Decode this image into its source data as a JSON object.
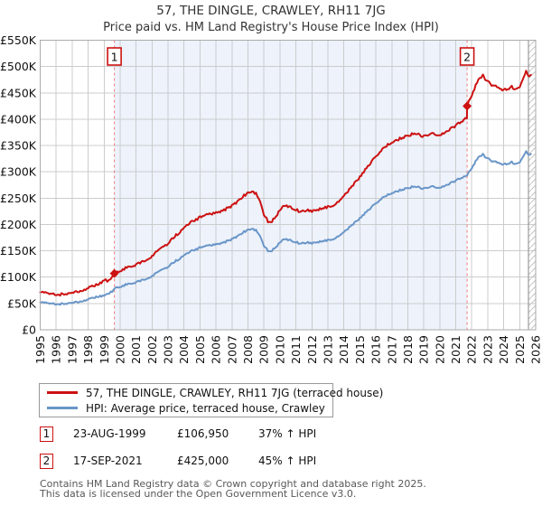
{
  "page": {
    "title_line1": "57, THE DINGLE, CRAWLEY, RH11 7JG",
    "title_line2": "Price paid vs. HM Land Registry's House Price Index (HPI)"
  },
  "chart_data": {
    "type": "line",
    "title": "57, THE DINGLE, CRAWLEY, RH11 7JG",
    "subtitle": "Price paid vs. HM Land Registry's House Price Index (HPI)",
    "grid": true,
    "legend_position": "bottom",
    "x_axis": {
      "min": 1995,
      "max": 2026,
      "tick_step": 1,
      "labels": [
        "1995",
        "1996",
        "1997",
        "1998",
        "1999",
        "2000",
        "2001",
        "2002",
        "2003",
        "2004",
        "2005",
        "2006",
        "2007",
        "2008",
        "2009",
        "2010",
        "2011",
        "2012",
        "2013",
        "2014",
        "2015",
        "2016",
        "2017",
        "2018",
        "2019",
        "2020",
        "2021",
        "2022",
        "2023",
        "2024",
        "2025",
        "2026"
      ]
    },
    "y_axis": {
      "min": 0,
      "max": 550000,
      "tick_step": 50000,
      "labels": [
        "£0",
        "£50K",
        "£100K",
        "£150K",
        "£200K",
        "£250K",
        "£300K",
        "£350K",
        "£400K",
        "£450K",
        "£500K",
        "£550K"
      ]
    },
    "shaded_span": {
      "from": 1999.64,
      "to": 2021.71,
      "color": "#edf2fb"
    },
    "hatch_span": {
      "from": 2025.55,
      "to": 2026
    },
    "sale_events": [
      {
        "label": "1",
        "x": 1999.64,
        "price": 106950
      },
      {
        "label": "2",
        "x": 2021.71,
        "price": 425000
      }
    ],
    "series": [
      {
        "name": "57, THE DINGLE, CRAWLEY, RH11 7JG (terraced house)",
        "color": "#cc1111",
        "noise": 2400,
        "points": [
          [
            1995.0,
            71200
          ],
          [
            1995.25,
            69900
          ],
          [
            1995.5,
            69200
          ],
          [
            1995.75,
            68500
          ],
          [
            1996.0,
            67800
          ],
          [
            1996.25,
            67100
          ],
          [
            1996.5,
            67800
          ],
          [
            1996.75,
            68500
          ],
          [
            1997.0,
            69900
          ],
          [
            1997.25,
            71200
          ],
          [
            1997.5,
            74000
          ],
          [
            1997.75,
            76700
          ],
          [
            1998.0,
            79500
          ],
          [
            1998.25,
            82200
          ],
          [
            1998.5,
            84900
          ],
          [
            1998.75,
            88000
          ],
          [
            1999.0,
            95000
          ],
          [
            1999.2,
            93500
          ],
          [
            1999.4,
            96500
          ],
          [
            1999.64,
            106950
          ],
          [
            1999.75,
            109600
          ],
          [
            2000.0,
            112300
          ],
          [
            2000.25,
            115800
          ],
          [
            2000.5,
            119200
          ],
          [
            2000.75,
            121900
          ],
          [
            2001.0,
            123300
          ],
          [
            2001.25,
            127400
          ],
          [
            2001.5,
            131500
          ],
          [
            2001.75,
            135600
          ],
          [
            2002.0,
            139700
          ],
          [
            2002.25,
            146600
          ],
          [
            2002.5,
            152100
          ],
          [
            2002.75,
            158900
          ],
          [
            2003.0,
            164400
          ],
          [
            2003.25,
            172600
          ],
          [
            2003.5,
            179500
          ],
          [
            2003.75,
            186300
          ],
          [
            2004.0,
            191800
          ],
          [
            2004.25,
            200000
          ],
          [
            2004.5,
            205500
          ],
          [
            2004.75,
            209600
          ],
          [
            2005.0,
            213700
          ],
          [
            2005.25,
            216500
          ],
          [
            2005.5,
            219200
          ],
          [
            2005.75,
            220600
          ],
          [
            2006.0,
            221900
          ],
          [
            2006.25,
            224700
          ],
          [
            2006.5,
            227400
          ],
          [
            2006.75,
            231500
          ],
          [
            2007.0,
            235600
          ],
          [
            2007.25,
            241100
          ],
          [
            2007.5,
            248000
          ],
          [
            2007.75,
            254800
          ],
          [
            2008.0,
            260300
          ],
          [
            2008.25,
            263000
          ],
          [
            2008.5,
            258900
          ],
          [
            2008.75,
            243900
          ],
          [
            2009.0,
            219200
          ],
          [
            2009.25,
            205500
          ],
          [
            2009.42,
            202800
          ],
          [
            2009.5,
            206900
          ],
          [
            2009.75,
            215100
          ],
          [
            2010.0,
            227400
          ],
          [
            2010.25,
            235600
          ],
          [
            2010.5,
            234300
          ],
          [
            2010.75,
            231500
          ],
          [
            2011.0,
            228800
          ],
          [
            2011.25,
            223300
          ],
          [
            2011.5,
            226100
          ],
          [
            2011.75,
            227400
          ],
          [
            2012.0,
            224700
          ],
          [
            2012.25,
            227400
          ],
          [
            2012.5,
            230200
          ],
          [
            2012.75,
            231500
          ],
          [
            2013.0,
            232900
          ],
          [
            2013.25,
            235600
          ],
          [
            2013.5,
            239800
          ],
          [
            2013.75,
            245200
          ],
          [
            2014.0,
            253500
          ],
          [
            2014.25,
            263000
          ],
          [
            2014.5,
            272600
          ],
          [
            2014.75,
            280900
          ],
          [
            2015.0,
            290400
          ],
          [
            2015.25,
            300000
          ],
          [
            2015.5,
            309600
          ],
          [
            2015.75,
            319200
          ],
          [
            2016.0,
            330200
          ],
          [
            2016.25,
            338400
          ],
          [
            2016.5,
            345200
          ],
          [
            2016.75,
            350700
          ],
          [
            2017.0,
            354800
          ],
          [
            2017.25,
            359000
          ],
          [
            2017.5,
            363100
          ],
          [
            2017.75,
            365800
          ],
          [
            2018.0,
            368500
          ],
          [
            2018.25,
            371300
          ],
          [
            2018.5,
            372600
          ],
          [
            2018.75,
            369900
          ],
          [
            2019.0,
            367200
          ],
          [
            2019.25,
            369900
          ],
          [
            2019.5,
            372600
          ],
          [
            2019.75,
            371300
          ],
          [
            2020.0,
            369900
          ],
          [
            2020.25,
            372600
          ],
          [
            2020.5,
            378100
          ],
          [
            2020.75,
            383600
          ],
          [
            2021.0,
            387700
          ],
          [
            2021.25,
            393200
          ],
          [
            2021.5,
            398700
          ],
          [
            2021.7,
            401400
          ],
          [
            2021.71,
            425000
          ],
          [
            2021.75,
            429200
          ],
          [
            2022.0,
            443700
          ],
          [
            2022.25,
            464000
          ],
          [
            2022.5,
            478500
          ],
          [
            2022.7,
            482900
          ],
          [
            2022.75,
            480000
          ],
          [
            2023.0,
            471300
          ],
          [
            2023.25,
            465500
          ],
          [
            2023.5,
            462600
          ],
          [
            2023.75,
            458200
          ],
          [
            2024.0,
            455300
          ],
          [
            2024.25,
            458200
          ],
          [
            2024.5,
            461100
          ],
          [
            2024.75,
            456800
          ],
          [
            2025.0,
            462600
          ],
          [
            2025.25,
            480000
          ],
          [
            2025.4,
            490100
          ],
          [
            2025.55,
            480000
          ],
          [
            2025.7,
            484300
          ]
        ]
      },
      {
        "name": "HPI: Average price, terraced house, Crawley",
        "color": "#6a96c8",
        "noise": 1700,
        "points": [
          [
            1995.0,
            52000
          ],
          [
            1995.25,
            51000
          ],
          [
            1995.5,
            50500
          ],
          [
            1995.75,
            50000
          ],
          [
            1996.0,
            49500
          ],
          [
            1996.25,
            49000
          ],
          [
            1996.5,
            49500
          ],
          [
            1996.75,
            50000
          ],
          [
            1997.0,
            51000
          ],
          [
            1997.25,
            52000
          ],
          [
            1997.5,
            54000
          ],
          [
            1997.75,
            56000
          ],
          [
            1998.0,
            58000
          ],
          [
            1998.25,
            60000
          ],
          [
            1998.5,
            62000
          ],
          [
            1998.75,
            63500
          ],
          [
            1999.0,
            65500
          ],
          [
            1999.25,
            68500
          ],
          [
            1999.5,
            72500
          ],
          [
            1999.64,
            78000
          ],
          [
            1999.75,
            80000
          ],
          [
            2000.0,
            82000
          ],
          [
            2000.25,
            84500
          ],
          [
            2000.5,
            87000
          ],
          [
            2000.75,
            89000
          ],
          [
            2001.0,
            90000
          ],
          [
            2001.25,
            93000
          ],
          [
            2001.5,
            96000
          ],
          [
            2001.75,
            99000
          ],
          [
            2002.0,
            102000
          ],
          [
            2002.25,
            107000
          ],
          [
            2002.5,
            111000
          ],
          [
            2002.75,
            116000
          ],
          [
            2003.0,
            120000
          ],
          [
            2003.25,
            126000
          ],
          [
            2003.5,
            131000
          ],
          [
            2003.75,
            136000
          ],
          [
            2004.0,
            140000
          ],
          [
            2004.25,
            146000
          ],
          [
            2004.5,
            150000
          ],
          [
            2004.75,
            153000
          ],
          [
            2005.0,
            156000
          ],
          [
            2005.25,
            158000
          ],
          [
            2005.5,
            160000
          ],
          [
            2005.75,
            161000
          ],
          [
            2006.0,
            162000
          ],
          [
            2006.25,
            164000
          ],
          [
            2006.5,
            166000
          ],
          [
            2006.75,
            169000
          ],
          [
            2007.0,
            172000
          ],
          [
            2007.25,
            176000
          ],
          [
            2007.5,
            181000
          ],
          [
            2007.75,
            186000
          ],
          [
            2008.0,
            190000
          ],
          [
            2008.25,
            192000
          ],
          [
            2008.5,
            189000
          ],
          [
            2008.75,
            178000
          ],
          [
            2009.0,
            160000
          ],
          [
            2009.25,
            150000
          ],
          [
            2009.42,
            148000
          ],
          [
            2009.5,
            151000
          ],
          [
            2009.75,
            157000
          ],
          [
            2010.0,
            166000
          ],
          [
            2010.25,
            172000
          ],
          [
            2010.5,
            171000
          ],
          [
            2010.75,
            169000
          ],
          [
            2011.0,
            167000
          ],
          [
            2011.25,
            163000
          ],
          [
            2011.5,
            165000
          ],
          [
            2011.75,
            166000
          ],
          [
            2012.0,
            164000
          ],
          [
            2012.25,
            166000
          ],
          [
            2012.5,
            168000
          ],
          [
            2012.75,
            169000
          ],
          [
            2013.0,
            170000
          ],
          [
            2013.25,
            172000
          ],
          [
            2013.5,
            175000
          ],
          [
            2013.75,
            179000
          ],
          [
            2014.0,
            185000
          ],
          [
            2014.25,
            192000
          ],
          [
            2014.5,
            199000
          ],
          [
            2014.75,
            205000
          ],
          [
            2015.0,
            212000
          ],
          [
            2015.25,
            219000
          ],
          [
            2015.5,
            226000
          ],
          [
            2015.75,
            233000
          ],
          [
            2016.0,
            241000
          ],
          [
            2016.25,
            247000
          ],
          [
            2016.5,
            252000
          ],
          [
            2016.75,
            256000
          ],
          [
            2017.0,
            259000
          ],
          [
            2017.25,
            262000
          ],
          [
            2017.5,
            265000
          ],
          [
            2017.75,
            267000
          ],
          [
            2018.0,
            269000
          ],
          [
            2018.25,
            271000
          ],
          [
            2018.5,
            272000
          ],
          [
            2018.75,
            270000
          ],
          [
            2019.0,
            268000
          ],
          [
            2019.25,
            270000
          ],
          [
            2019.5,
            272000
          ],
          [
            2019.75,
            271000
          ],
          [
            2020.0,
            270000
          ],
          [
            2020.25,
            272000
          ],
          [
            2020.5,
            276000
          ],
          [
            2020.75,
            280000
          ],
          [
            2021.0,
            283000
          ],
          [
            2021.25,
            287000
          ],
          [
            2021.5,
            291000
          ],
          [
            2021.71,
            293000
          ],
          [
            2021.75,
            296000
          ],
          [
            2022.0,
            306000
          ],
          [
            2022.25,
            320000
          ],
          [
            2022.5,
            330000
          ],
          [
            2022.7,
            333000
          ],
          [
            2022.75,
            331000
          ],
          [
            2023.0,
            325000
          ],
          [
            2023.25,
            321000
          ],
          [
            2023.5,
            319000
          ],
          [
            2023.75,
            316000
          ],
          [
            2024.0,
            314000
          ],
          [
            2024.25,
            316000
          ],
          [
            2024.5,
            318000
          ],
          [
            2024.75,
            315000
          ],
          [
            2025.0,
            319000
          ],
          [
            2025.25,
            331000
          ],
          [
            2025.4,
            338000
          ],
          [
            2025.55,
            331000
          ],
          [
            2025.7,
            334000
          ]
        ]
      }
    ]
  },
  "legend": {
    "items": [
      {
        "label": "57, THE DINGLE, CRAWLEY, RH11 7JG (terraced house)",
        "color": "#cc1111"
      },
      {
        "label": "HPI: Average price, terraced house, Crawley",
        "color": "#6a96c8"
      }
    ]
  },
  "annotations": [
    {
      "num": "1",
      "date": "23-AUG-1999",
      "price": "£106,950",
      "hpi_delta": "37% ↑ HPI"
    },
    {
      "num": "2",
      "date": "17-SEP-2021",
      "price": "£425,000",
      "hpi_delta": "45% ↑ HPI"
    }
  ],
  "footer": {
    "line1": "Contains HM Land Registry data © Crown copyright and database right 2025.",
    "line2": "This data is licensed under the Open Government Licence v3.0."
  },
  "colors": {
    "accent_red": "#cc1111",
    "hpi_blue": "#6a96c8",
    "shade_blue": "#edf2fb",
    "grid": "#cccccc",
    "border": "#aaaaaa",
    "sale_dash": "#f07c7c",
    "hatch": "#c4c4c4",
    "hatch_edge": "#888888"
  }
}
